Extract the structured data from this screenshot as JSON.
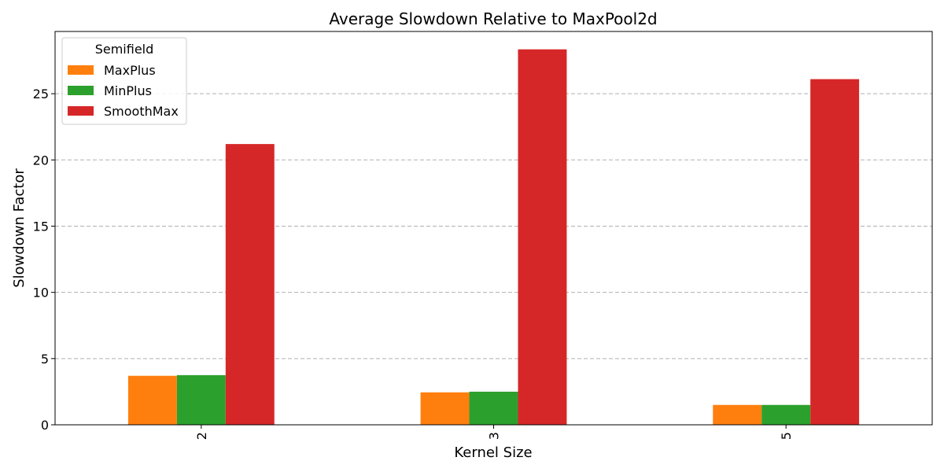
{
  "chart_data": {
    "type": "bar",
    "title": "Average Slowdown Relative to MaxPool2d",
    "xlabel": "Kernel Size",
    "ylabel": "Slowdown Factor",
    "categories": [
      "2",
      "3",
      "5"
    ],
    "series": [
      {
        "name": "MaxPlus",
        "values": [
          3.7,
          2.45,
          1.5
        ],
        "color": "#ff7f0e"
      },
      {
        "name": "MinPlus",
        "values": [
          3.75,
          2.5,
          1.5
        ],
        "color": "#2ca02c"
      },
      {
        "name": "SmoothMax",
        "values": [
          21.2,
          28.35,
          26.1
        ],
        "color": "#d62728"
      }
    ],
    "ylim": [
      0,
      29.7
    ],
    "yticks": [
      0,
      5,
      10,
      15,
      20,
      25
    ],
    "grid": true,
    "legend": {
      "title": "Semifield",
      "position": "top-left"
    }
  }
}
